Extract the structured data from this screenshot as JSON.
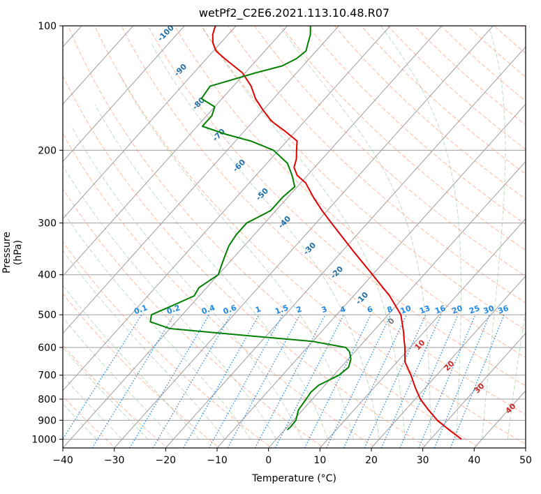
{
  "chart_data": {
    "type": "line",
    "chart_kind": "skew-T log-P diagram",
    "title": "wetPf2_C2E6.2021.113.10.48.R07",
    "xlabel": "Temperature (°C)",
    "ylabel": "Pressure (hPa)",
    "xlim": [
      -40,
      50
    ],
    "ylim": [
      1050,
      100
    ],
    "y_scale": "log",
    "grid": true,
    "x_ticks": [
      -40,
      -30,
      -20,
      -10,
      0,
      10,
      20,
      30,
      40,
      50
    ],
    "y_ticks": [
      100,
      200,
      300,
      400,
      500,
      600,
      700,
      800,
      900,
      1000
    ],
    "series": [
      {
        "role": "temperature",
        "color": "#e00000",
        "points": [
          [
            1000,
            36.0
          ],
          [
            950,
            32.0
          ],
          [
            900,
            28.0
          ],
          [
            850,
            24.5
          ],
          [
            800,
            21.0
          ],
          [
            750,
            18.0
          ],
          [
            700,
            15.0
          ],
          [
            650,
            11.5
          ],
          [
            600,
            9.0
          ],
          [
            575,
            7.5
          ],
          [
            550,
            6.0
          ],
          [
            500,
            2.5
          ],
          [
            450,
            -3.0
          ],
          [
            400,
            -10.0
          ],
          [
            350,
            -18.0
          ],
          [
            300,
            -27.0
          ],
          [
            280,
            -31.0
          ],
          [
            260,
            -35.0
          ],
          [
            240,
            -39.0
          ],
          [
            230,
            -42.0
          ],
          [
            220,
            -44.0
          ],
          [
            210,
            -45.0
          ],
          [
            200,
            -46.5
          ],
          [
            190,
            -48.0
          ],
          [
            180,
            -52.0
          ],
          [
            170,
            -56.5
          ],
          [
            160,
            -60.0
          ],
          [
            150,
            -63.5
          ],
          [
            140,
            -66.5
          ],
          [
            130,
            -70.5
          ],
          [
            120,
            -76.5
          ],
          [
            115,
            -79.5
          ],
          [
            110,
            -81.5
          ],
          [
            105,
            -83.0
          ],
          [
            100,
            -84.0
          ]
        ]
      },
      {
        "role": "dewpoint",
        "color": "#008000",
        "points": [
          [
            950,
            0.5
          ],
          [
            930,
            0.6
          ],
          [
            900,
            0.5
          ],
          [
            850,
            -0.8
          ],
          [
            800,
            -1.2
          ],
          [
            770,
            -1.5
          ],
          [
            740,
            -1.2
          ],
          [
            700,
            1.0
          ],
          [
            670,
            1.5
          ],
          [
            640,
            0.5
          ],
          [
            615,
            -1.0
          ],
          [
            600,
            -2.5
          ],
          [
            580,
            -10.0
          ],
          [
            560,
            -25.0
          ],
          [
            540,
            -40.0
          ],
          [
            520,
            -45.0
          ],
          [
            500,
            -46.0
          ],
          [
            480,
            -44.0
          ],
          [
            450,
            -41.0
          ],
          [
            430,
            -41.5
          ],
          [
            400,
            -40.0
          ],
          [
            380,
            -41.0
          ],
          [
            360,
            -42.0
          ],
          [
            340,
            -43.0
          ],
          [
            320,
            -43.5
          ],
          [
            300,
            -43.5
          ],
          [
            280,
            -41.0
          ],
          [
            260,
            -41.0
          ],
          [
            245,
            -40.5
          ],
          [
            230,
            -43.0
          ],
          [
            215,
            -46.0
          ],
          [
            200,
            -51.0
          ],
          [
            190,
            -57.0
          ],
          [
            183,
            -63.0
          ],
          [
            175,
            -69.0
          ],
          [
            165,
            -69.0
          ],
          [
            157,
            -70.0
          ],
          [
            150,
            -74.0
          ],
          [
            140,
            -74.5
          ],
          [
            130,
            -68.0
          ],
          [
            125,
            -64.0
          ],
          [
            120,
            -62.5
          ],
          [
            115,
            -62.0
          ],
          [
            110,
            -63.0
          ],
          [
            105,
            -64.0
          ],
          [
            100,
            -65.5
          ]
        ]
      }
    ],
    "mixing_ratio_labels": [
      "0.1",
      "0.2",
      "0.4",
      "0.6",
      "1",
      "1.5",
      "2",
      "3",
      "4",
      "6",
      "8",
      "10",
      "13",
      "16",
      "20",
      "25",
      "30",
      "36"
    ],
    "dry_adiabat_labels": [
      "-100",
      "-90",
      "-80",
      "-70",
      "-60",
      "-50",
      "-40",
      "-30",
      "-20",
      "-10"
    ],
    "moist_adiabat_labels": [
      "0",
      "10",
      "20",
      "30",
      "40"
    ],
    "colors": {
      "temperature": "#e00000",
      "dewpoint": "#008000",
      "isotherm": "#9e9e9e",
      "dry_adiabat": "#ff7f50",
      "moist_adiabat": "#2e8b2e",
      "mixing_ratio": "#1e88e5"
    }
  }
}
